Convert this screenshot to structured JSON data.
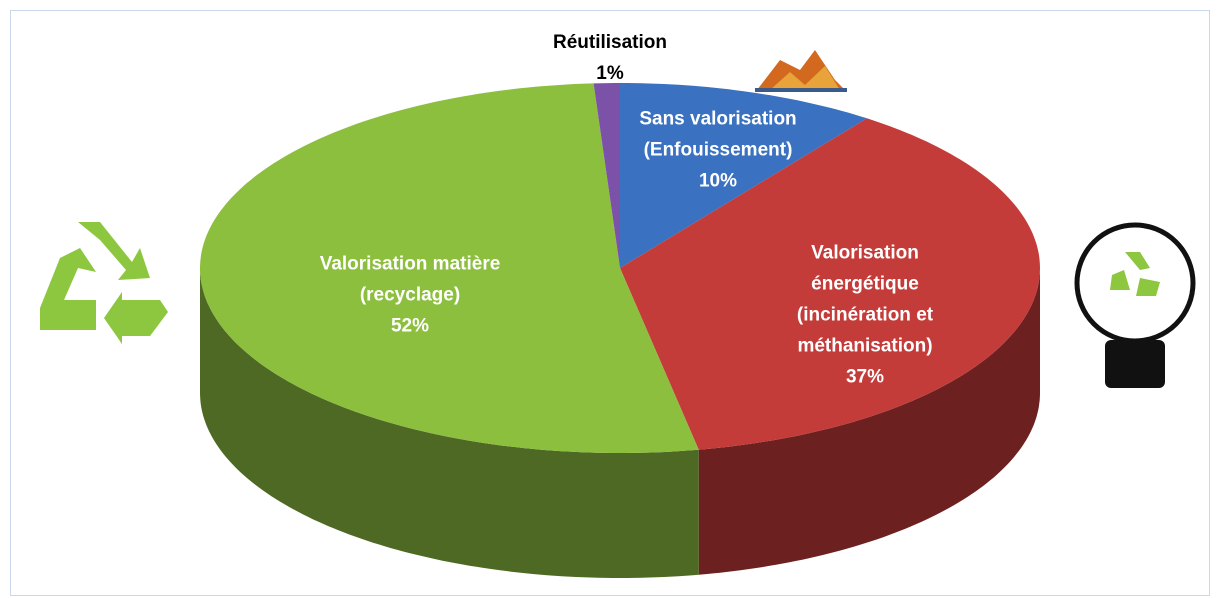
{
  "chart_data": {
    "type": "pie",
    "categories": [
      "Sans valorisation (Enfouissement)",
      "Valorisation énergétique (incinération et méthanisation)",
      "Valorisation matière (recyclage)",
      "Réutilisation"
    ],
    "values": [
      10,
      37,
      52,
      1
    ],
    "value_labels": [
      "10%",
      "37%",
      "52%",
      "1%"
    ],
    "colors": [
      "#3b71c1",
      "#c43c3a",
      "#8dbf3f",
      "#7b52a8"
    ]
  }
}
